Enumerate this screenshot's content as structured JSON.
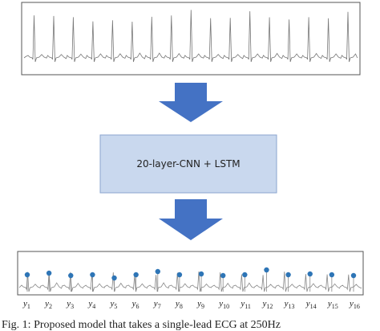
{
  "model": {
    "label": "20-layer-CNN + LSTM"
  },
  "outputs": [
    {
      "symbol": "y",
      "index": "1"
    },
    {
      "symbol": "y",
      "index": "2"
    },
    {
      "symbol": "y",
      "index": "3"
    },
    {
      "symbol": "y",
      "index": "4"
    },
    {
      "symbol": "y",
      "index": "5"
    },
    {
      "symbol": "y",
      "index": "6"
    },
    {
      "symbol": "y",
      "index": "7"
    },
    {
      "symbol": "y",
      "index": "8"
    },
    {
      "symbol": "y",
      "index": "9"
    },
    {
      "symbol": "y",
      "index": "10"
    },
    {
      "symbol": "y",
      "index": "11"
    },
    {
      "symbol": "y",
      "index": "12"
    },
    {
      "symbol": "y",
      "index": "13"
    },
    {
      "symbol": "y",
      "index": "14"
    },
    {
      "symbol": "y",
      "index": "15"
    },
    {
      "symbol": "y",
      "index": "16"
    }
  ],
  "caption": "Fig. 1: Proposed model that takes a single-lead ECG at 250Hz"
}
